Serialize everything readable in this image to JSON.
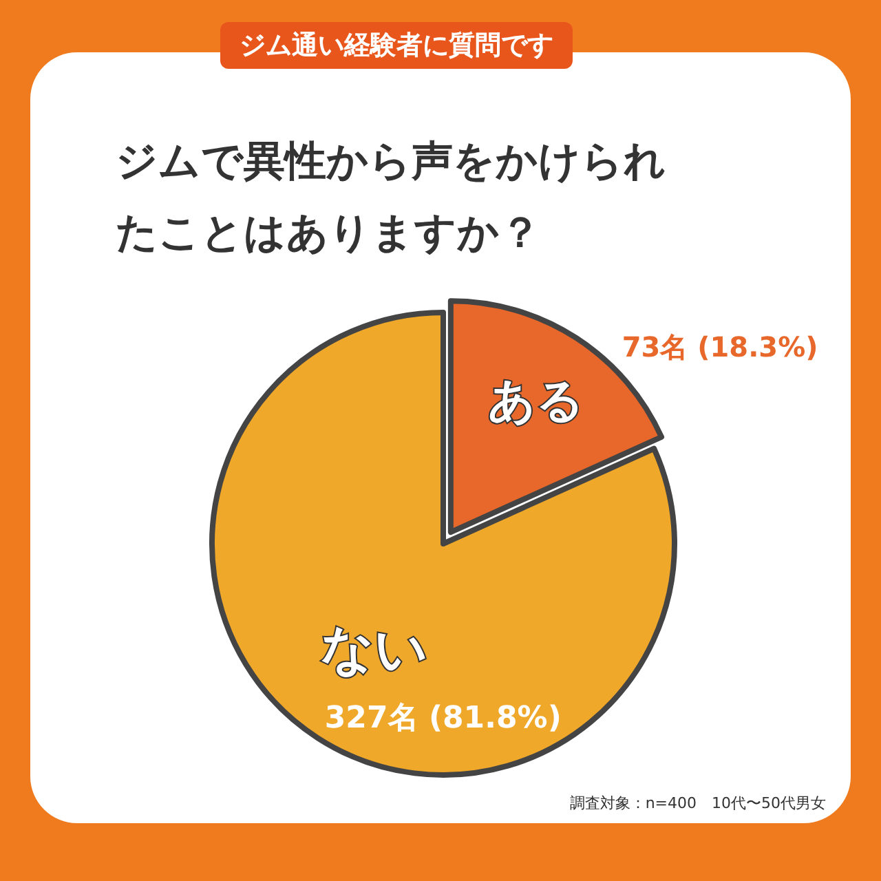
{
  "chart_data": {
    "type": "pie",
    "subtitle": "ジム通い経験者に質問です",
    "title": "ジムで異性から声をかけられたことはありますか？",
    "categories": [
      "ある",
      "ない"
    ],
    "values": [
      73,
      327
    ],
    "colors": [
      "#e8672a",
      "#efa82a"
    ],
    "value_labels": [
      "73名 (18.3%)",
      "327名 (81.8%)"
    ],
    "annotations": [
      "調査対象：n=400　10代〜50代男女"
    ]
  }
}
